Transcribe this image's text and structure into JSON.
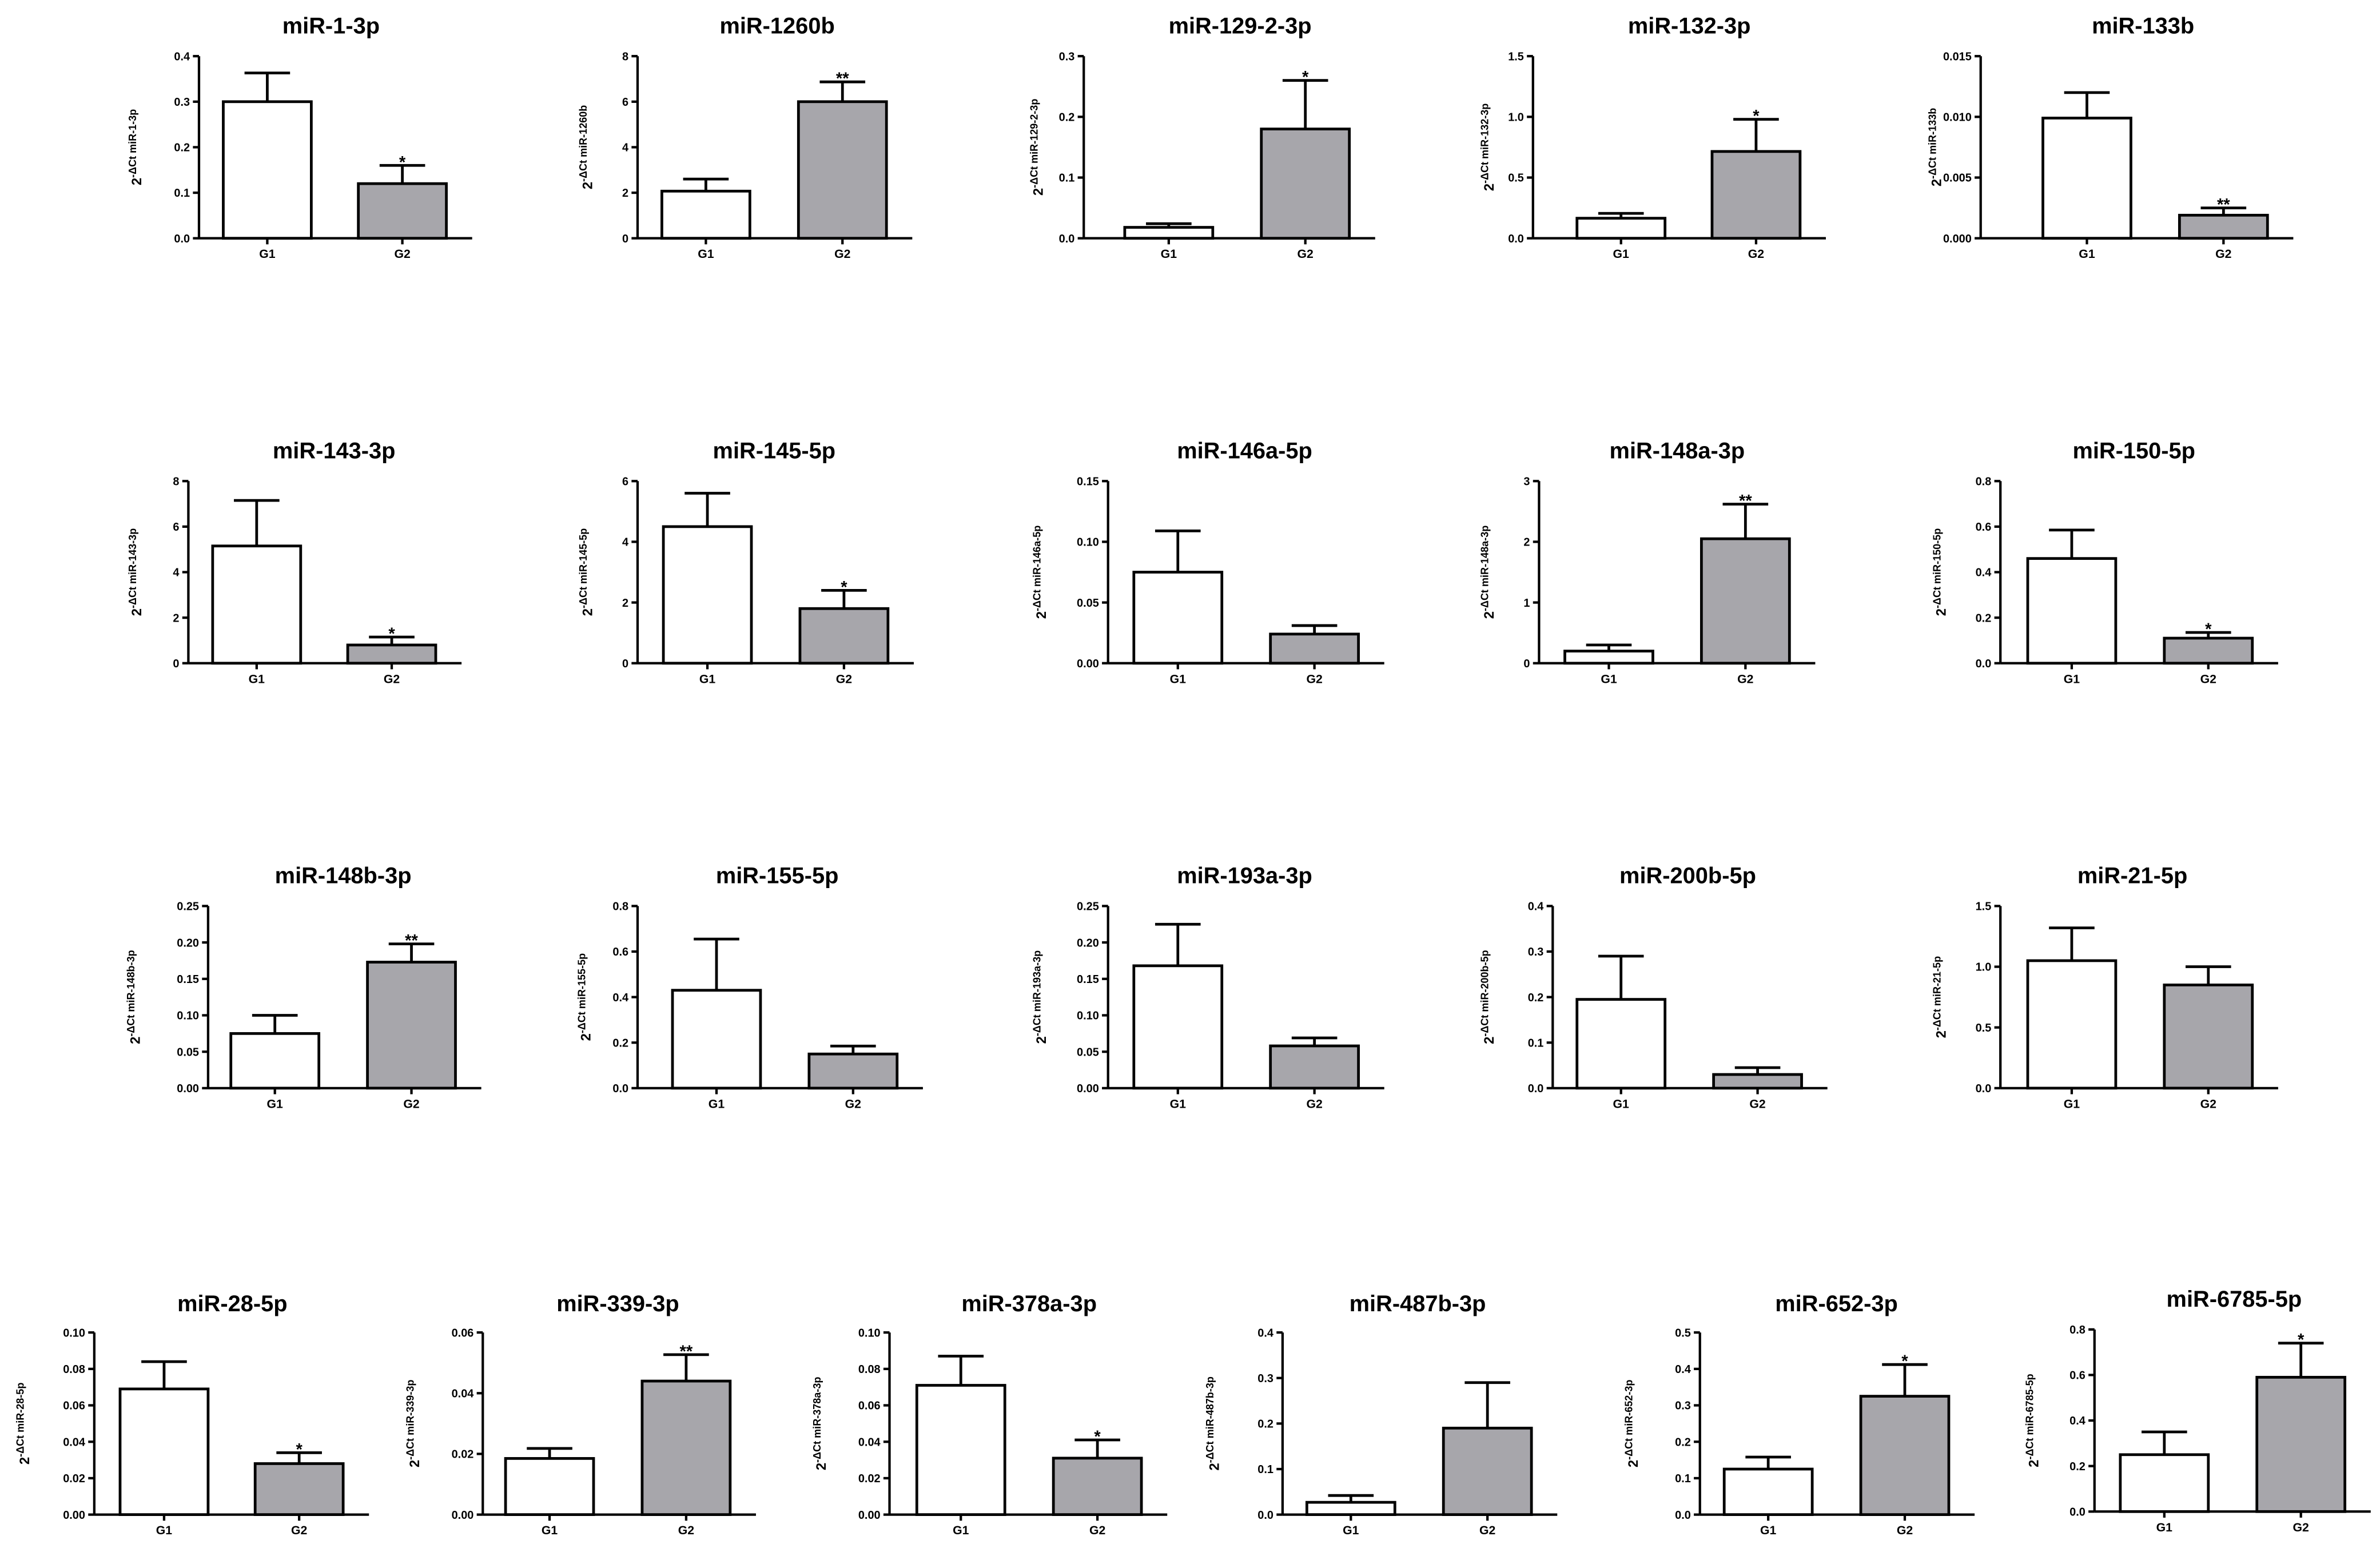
{
  "colors": {
    "g1_fill": "#ffffff",
    "g2_fill": "#a7a6ab",
    "stroke": "#000000"
  },
  "chart_data": [
    {
      "type": "bar",
      "title": "miR-1-3p",
      "ylabel_base": "2",
      "ylabel_exp": "-ΔCt miR-1-3p",
      "categories": [
        "G1",
        "G2"
      ],
      "values": [
        0.3,
        0.12
      ],
      "error": [
        0.063,
        0.04
      ],
      "significance": [
        "",
        "*"
      ],
      "ylim": [
        0,
        0.4
      ],
      "ytick_labels": [
        "0.0",
        "0.1",
        "0.2",
        "0.3",
        "0.4"
      ]
    },
    {
      "type": "bar",
      "title": "miR-1260b",
      "ylabel_base": "2",
      "ylabel_exp": "-ΔCt miR-1260b",
      "categories": [
        "G1",
        "G2"
      ],
      "values": [
        2.07,
        6.0
      ],
      "error": [
        0.53,
        0.87
      ],
      "significance": [
        "",
        "**"
      ],
      "ylim": [
        0,
        8
      ],
      "ytick_labels": [
        "0",
        "2",
        "4",
        "6",
        "8"
      ]
    },
    {
      "type": "bar",
      "title": "miR-129-2-3p",
      "ylabel_base": "2",
      "ylabel_exp": "-ΔCt miR-129-2-3p",
      "categories": [
        "G1",
        "G2"
      ],
      "values": [
        0.018,
        0.18
      ],
      "error": [
        0.006,
        0.08
      ],
      "significance": [
        "",
        "*"
      ],
      "ylim": [
        0,
        0.3
      ],
      "ytick_labels": [
        "0.0",
        "0.1",
        "0.2",
        "0.3"
      ]
    },
    {
      "type": "bar",
      "title": "miR-132-3p",
      "ylabel_base": "2",
      "ylabel_exp": "-ΔCt miR-132-3p",
      "categories": [
        "G1",
        "G2"
      ],
      "values": [
        0.165,
        0.715
      ],
      "error": [
        0.04,
        0.265
      ],
      "significance": [
        "",
        "*"
      ],
      "ylim": [
        0,
        1.5
      ],
      "ytick_labels": [
        "0.0",
        "0.5",
        "1.0",
        "1.5"
      ]
    },
    {
      "type": "bar",
      "title": "miR-133b",
      "ylabel_base": "2",
      "ylabel_exp": "-ΔCt miR-133b",
      "categories": [
        "G1",
        "G2"
      ],
      "values": [
        0.0099,
        0.0019
      ],
      "error": [
        0.0021,
        0.0006
      ],
      "significance": [
        "",
        "**"
      ],
      "ylim": [
        0,
        0.015
      ],
      "ytick_labels": [
        "0.000",
        "0.005",
        "0.010",
        "0.015"
      ]
    },
    {
      "type": "bar",
      "title": "miR-143-3p",
      "ylabel_base": "2",
      "ylabel_exp": "-ΔCt miR-143-3p",
      "categories": [
        "G1",
        "G2"
      ],
      "values": [
        5.15,
        0.8
      ],
      "error": [
        2.0,
        0.35
      ],
      "significance": [
        "",
        "*"
      ],
      "ylim": [
        0,
        8
      ],
      "ytick_labels": [
        "0",
        "2",
        "4",
        "6",
        "8"
      ]
    },
    {
      "type": "bar",
      "title": "miR-145-5p",
      "ylabel_base": "2",
      "ylabel_exp": "-ΔCt miR-145-5p",
      "categories": [
        "G1",
        "G2"
      ],
      "values": [
        4.5,
        1.8
      ],
      "error": [
        1.1,
        0.6
      ],
      "significance": [
        "",
        "*"
      ],
      "ylim": [
        0,
        6
      ],
      "ytick_labels": [
        "0",
        "2",
        "4",
        "6"
      ]
    },
    {
      "type": "bar",
      "title": "miR-146a-5p",
      "ylabel_base": "2",
      "ylabel_exp": "-ΔCt miR-146a-5p",
      "categories": [
        "G1",
        "G2"
      ],
      "values": [
        0.075,
        0.024
      ],
      "error": [
        0.034,
        0.007
      ],
      "significance": [
        "",
        ""
      ],
      "ylim": [
        0,
        0.15
      ],
      "ytick_labels": [
        "0.00",
        "0.05",
        "0.10",
        "0.15"
      ]
    },
    {
      "type": "bar",
      "title": "miR-148a-3p",
      "ylabel_base": "2",
      "ylabel_exp": "-ΔCt miR-148a-3p",
      "categories": [
        "G1",
        "G2"
      ],
      "values": [
        0.2,
        2.05
      ],
      "error": [
        0.1,
        0.57
      ],
      "significance": [
        "",
        "**"
      ],
      "ylim": [
        0,
        3
      ],
      "ytick_labels": [
        "0",
        "1",
        "2",
        "3"
      ]
    },
    {
      "type": "bar",
      "title": "miR-150-5p",
      "ylabel_base": "2",
      "ylabel_exp": "-ΔCt miR-150-5p",
      "categories": [
        "G1",
        "G2"
      ],
      "values": [
        0.46,
        0.11
      ],
      "error": [
        0.125,
        0.025
      ],
      "significance": [
        "",
        "*"
      ],
      "ylim": [
        0,
        0.8
      ],
      "ytick_labels": [
        "0.0",
        "0.2",
        "0.4",
        "0.6",
        "0.8"
      ]
    },
    {
      "type": "bar",
      "title": "miR-148b-3p",
      "ylabel_base": "2",
      "ylabel_exp": "-ΔCt miR-148b-3p",
      "categories": [
        "G1",
        "G2"
      ],
      "values": [
        0.075,
        0.173
      ],
      "error": [
        0.025,
        0.025
      ],
      "significance": [
        "",
        "**"
      ],
      "ylim": [
        0,
        0.25
      ],
      "ytick_labels": [
        "0.00",
        "0.05",
        "0.10",
        "0.15",
        "0.20",
        "0.25"
      ]
    },
    {
      "type": "bar",
      "title": "miR-155-5p",
      "ylabel_base": "2",
      "ylabel_exp": "-ΔCt miR-155-5p",
      "categories": [
        "G1",
        "G2"
      ],
      "values": [
        0.43,
        0.15
      ],
      "error": [
        0.225,
        0.035
      ],
      "significance": [
        "",
        ""
      ],
      "ylim": [
        0,
        0.8
      ],
      "ytick_labels": [
        "0.0",
        "0.2",
        "0.4",
        "0.6",
        "0.8"
      ]
    },
    {
      "type": "bar",
      "title": "miR-193a-3p",
      "ylabel_base": "2",
      "ylabel_exp": "-ΔCt miR-193a-3p",
      "categories": [
        "G1",
        "G2"
      ],
      "values": [
        0.168,
        0.058
      ],
      "error": [
        0.057,
        0.011
      ],
      "significance": [
        "",
        ""
      ],
      "ylim": [
        0,
        0.25
      ],
      "ytick_labels": [
        "0.00",
        "0.05",
        "0.10",
        "0.15",
        "0.20",
        "0.25"
      ]
    },
    {
      "type": "bar",
      "title": "miR-200b-5p",
      "ylabel_base": "2",
      "ylabel_exp": "-ΔCt miR-200b-5p",
      "categories": [
        "G1",
        "G2"
      ],
      "values": [
        0.195,
        0.03
      ],
      "error": [
        0.095,
        0.015
      ],
      "significance": [
        "",
        ""
      ],
      "ylim": [
        0,
        0.4
      ],
      "ytick_labels": [
        "0.0",
        "0.1",
        "0.2",
        "0.3",
        "0.4"
      ]
    },
    {
      "type": "bar",
      "title": "miR-21-5p",
      "ylabel_base": "2",
      "ylabel_exp": "-ΔCt miR-21-5p",
      "categories": [
        "G1",
        "G2"
      ],
      "values": [
        1.05,
        0.85
      ],
      "error": [
        0.27,
        0.15
      ],
      "significance": [
        "",
        ""
      ],
      "ylim": [
        0,
        1.5
      ],
      "ytick_labels": [
        "0.0",
        "0.5",
        "1.0",
        "1.5"
      ]
    },
    {
      "type": "bar",
      "title": "miR-28-5p",
      "ylabel_base": "2",
      "ylabel_exp": "-ΔCt miR-28-5p",
      "categories": [
        "G1",
        "G2"
      ],
      "values": [
        0.069,
        0.028
      ],
      "error": [
        0.015,
        0.006
      ],
      "significance": [
        "",
        "*"
      ],
      "ylim": [
        0,
        0.1
      ],
      "ytick_labels": [
        "0.00",
        "0.02",
        "0.04",
        "0.06",
        "0.08",
        "0.10"
      ]
    },
    {
      "type": "bar",
      "title": "miR-339-3p",
      "ylabel_base": "2",
      "ylabel_exp": "-ΔCt miR-339-3p",
      "categories": [
        "G1",
        "G2"
      ],
      "values": [
        0.0185,
        0.044
      ],
      "error": [
        0.0033,
        0.0087
      ],
      "significance": [
        "",
        "**"
      ],
      "ylim": [
        0,
        0.06
      ],
      "ytick_labels": [
        "0.00",
        "0.02",
        "0.04",
        "0.06"
      ]
    },
    {
      "type": "bar",
      "title": "miR-378a-3p",
      "ylabel_base": "2",
      "ylabel_exp": "-ΔCt miR-378a-3p",
      "categories": [
        "G1",
        "G2"
      ],
      "values": [
        0.071,
        0.031
      ],
      "error": [
        0.016,
        0.01
      ],
      "significance": [
        "",
        "*"
      ],
      "ylim": [
        0,
        0.1
      ],
      "ytick_labels": [
        "0.00",
        "0.02",
        "0.04",
        "0.06",
        "0.08",
        "0.10"
      ]
    },
    {
      "type": "bar",
      "title": "miR-487b-3p",
      "ylabel_base": "2",
      "ylabel_exp": "-ΔCt miR-487b-3p",
      "categories": [
        "G1",
        "G2"
      ],
      "values": [
        0.027,
        0.19
      ],
      "error": [
        0.015,
        0.1
      ],
      "significance": [
        "",
        ""
      ],
      "ylim": [
        0,
        0.4
      ],
      "ytick_labels": [
        "0.0",
        "0.1",
        "0.2",
        "0.3",
        "0.4"
      ]
    },
    {
      "type": "bar",
      "title": "miR-652-3p",
      "ylabel_base": "2",
      "ylabel_exp": "-ΔCt miR-652-3p",
      "categories": [
        "G1",
        "G2"
      ],
      "values": [
        0.125,
        0.325
      ],
      "error": [
        0.033,
        0.087
      ],
      "significance": [
        "",
        "*"
      ],
      "ylim": [
        0,
        0.5
      ],
      "ytick_labels": [
        "0.0",
        "0.1",
        "0.2",
        "0.3",
        "0.4",
        "0.5"
      ]
    },
    {
      "type": "bar",
      "title": "miR-6785-5p",
      "ylabel_base": "2",
      "ylabel_exp": "-ΔCt miR-6785-5p",
      "categories": [
        "G1",
        "G2"
      ],
      "values": [
        0.25,
        0.59
      ],
      "error": [
        0.1,
        0.15
      ],
      "significance": [
        "",
        "*"
      ],
      "ylim": [
        0,
        0.8
      ],
      "ytick_labels": [
        "0.0",
        "0.2",
        "0.4",
        "0.6",
        "0.8"
      ]
    }
  ]
}
